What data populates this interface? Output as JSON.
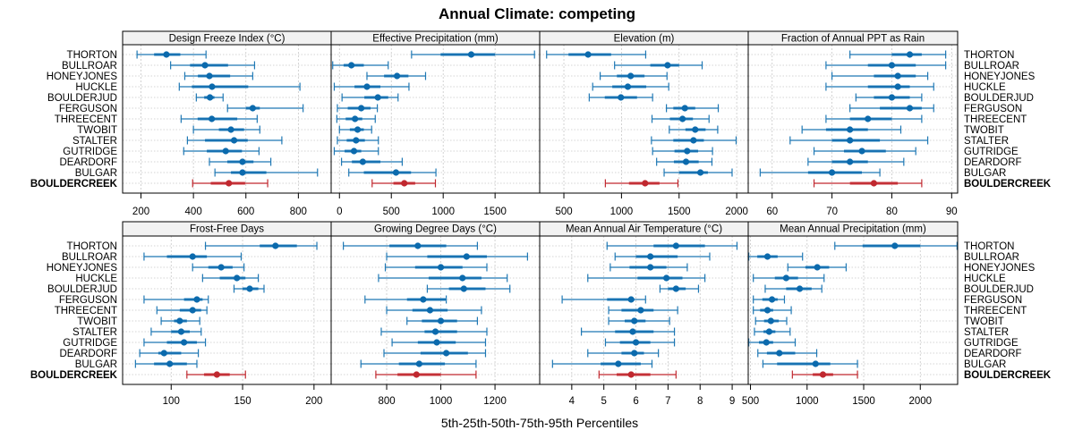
{
  "chart_data": {
    "type": "dotplot-percentile",
    "title": "Annual Climate: competing",
    "xlabel": "5th-25th-50th-75th-95th Percentiles",
    "ylabel": "",
    "categories": [
      "THORTON",
      "BULLROAR",
      "HONEYJONES",
      "HUCKLE",
      "BOULDERJUD",
      "FERGUSON",
      "THREECENT",
      "TWOBIT",
      "STALTER",
      "GUTRIDGE",
      "DEARDORF",
      "BULGAR",
      "BOULDERCREEK"
    ],
    "highlight_category": "BOULDERCREEK",
    "percentile_keys": [
      "p5",
      "p25",
      "p50",
      "p75",
      "p95"
    ],
    "colors": {
      "series": "#1f78b4",
      "series_dark": "#0b6aad",
      "series_light": "#8cbfe0",
      "highlight": "#c0282f",
      "highlight_light": "#e08a8e",
      "strip_bg": "#f2f2f2",
      "grid": "#c8c8c8"
    },
    "grid": true,
    "legend": "none",
    "panels": [
      {
        "name": "Design Freeze Index (°C)",
        "xlim": [
          130,
          925
        ],
        "ticks": [
          200,
          400,
          600,
          800
        ],
        "values": [
          [
            185,
            250,
            297,
            350,
            448
          ],
          [
            313,
            387,
            444,
            532,
            633
          ],
          [
            367,
            417,
            461,
            540,
            626
          ],
          [
            346,
            394,
            471,
            609,
            806
          ],
          [
            411,
            441,
            463,
            480,
            513
          ],
          [
            530,
            600,
            626,
            653,
            818
          ],
          [
            353,
            416,
            470,
            567,
            643
          ],
          [
            400,
            497,
            543,
            593,
            653
          ],
          [
            377,
            444,
            555,
            607,
            737
          ],
          [
            363,
            451,
            523,
            585,
            650
          ],
          [
            461,
            529,
            587,
            629,
            695
          ],
          [
            482,
            543,
            587,
            678,
            873
          ],
          [
            397,
            466,
            535,
            597,
            683
          ]
        ]
      },
      {
        "name": "Effective Precipitation (mm)",
        "xlim": [
          -80,
          1930
        ],
        "ticks": [
          0,
          500,
          1000,
          1500
        ],
        "values": [
          [
            695,
            975,
            1270,
            1500,
            1880
          ],
          [
            -65,
            40,
            115,
            235,
            470
          ],
          [
            265,
            430,
            555,
            665,
            830
          ],
          [
            -50,
            145,
            265,
            395,
            670
          ],
          [
            25,
            240,
            370,
            470,
            565
          ],
          [
            -20,
            80,
            210,
            300,
            365
          ],
          [
            -25,
            60,
            150,
            220,
            345
          ],
          [
            0,
            100,
            175,
            235,
            310
          ],
          [
            -20,
            70,
            160,
            245,
            375
          ],
          [
            -50,
            50,
            140,
            210,
            375
          ],
          [
            20,
            120,
            225,
            395,
            605
          ],
          [
            90,
            235,
            545,
            690,
            930
          ],
          [
            315,
            520,
            625,
            730,
            925
          ]
        ]
      },
      {
        "name": "Elevation (m)",
        "xlim": [
          290,
          2100
        ],
        "ticks": [
          500,
          1000,
          1500,
          2000
        ],
        "values": [
          [
            350,
            540,
            710,
            910,
            1210
          ],
          [
            940,
            1250,
            1400,
            1500,
            1700
          ],
          [
            815,
            960,
            1080,
            1200,
            1395
          ],
          [
            750,
            920,
            1055,
            1215,
            1410
          ],
          [
            720,
            855,
            995,
            1135,
            1270
          ],
          [
            1390,
            1450,
            1550,
            1640,
            1840
          ],
          [
            1265,
            1420,
            1530,
            1620,
            1760
          ],
          [
            1415,
            1555,
            1640,
            1730,
            1835
          ],
          [
            1260,
            1450,
            1625,
            1715,
            1995
          ],
          [
            1270,
            1460,
            1570,
            1665,
            1790
          ],
          [
            1305,
            1455,
            1560,
            1670,
            1785
          ],
          [
            1370,
            1500,
            1685,
            1750,
            1960
          ],
          [
            860,
            1065,
            1205,
            1330,
            1490
          ]
        ]
      },
      {
        "name": "Fraction of Annual PPT as Rain",
        "xlim": [
          56,
          91
        ],
        "ticks": [
          60,
          70,
          80,
          90
        ],
        "values": [
          [
            73,
            80,
            83,
            85,
            89
          ],
          [
            69,
            76,
            80,
            84,
            89
          ],
          [
            70,
            77,
            81,
            84,
            86
          ],
          [
            69,
            76,
            81,
            83,
            87
          ],
          [
            74,
            77,
            80,
            83,
            85
          ],
          [
            73,
            78,
            83,
            85,
            87
          ],
          [
            69,
            73,
            76,
            80,
            85
          ],
          [
            65,
            69,
            73,
            76,
            81.5
          ],
          [
            63,
            70,
            73,
            78,
            86
          ],
          [
            67,
            72,
            75,
            79,
            84
          ],
          [
            66,
            70,
            73,
            76,
            82
          ],
          [
            58,
            66,
            70,
            75,
            78
          ],
          [
            67,
            73,
            77,
            81,
            85
          ]
        ]
      },
      {
        "name": "Frost-Free Days",
        "xlim": [
          66,
          212
        ],
        "ticks": [
          100,
          150,
          200
        ],
        "values": [
          [
            124,
            162,
            173,
            188,
            202
          ],
          [
            81,
            97,
            115,
            125,
            149
          ],
          [
            115,
            126,
            135,
            143,
            151
          ],
          [
            122,
            134,
            146,
            152,
            161
          ],
          [
            144,
            150,
            155,
            161,
            165
          ],
          [
            81,
            109,
            118,
            122,
            126
          ],
          [
            90,
            106,
            115,
            121,
            125
          ],
          [
            93,
            102,
            106,
            111,
            120
          ],
          [
            86,
            100,
            107,
            113,
            121
          ],
          [
            81,
            97,
            109,
            118,
            124
          ],
          [
            78,
            91,
            95,
            107,
            119
          ],
          [
            75,
            88,
            99,
            111,
            118
          ],
          [
            111,
            123,
            132,
            141,
            152
          ]
        ]
      },
      {
        "name": "Growing Degree Days (°C)",
        "xlim": [
          595,
          1365
        ],
        "ticks": [
          800,
          1000,
          1200
        ],
        "values": [
          [
            640,
            810,
            915,
            1020,
            1135
          ],
          [
            800,
            950,
            1095,
            1170,
            1320
          ],
          [
            795,
            905,
            1000,
            1080,
            1170
          ],
          [
            770,
            955,
            1080,
            1150,
            1245
          ],
          [
            950,
            1030,
            1085,
            1165,
            1255
          ],
          [
            720,
            875,
            935,
            1020,
            1020
          ],
          [
            800,
            895,
            960,
            1025,
            1150
          ],
          [
            875,
            930,
            1000,
            1060,
            1135
          ],
          [
            780,
            940,
            980,
            1060,
            1170
          ],
          [
            820,
            915,
            985,
            1055,
            1165
          ],
          [
            790,
            925,
            1020,
            1100,
            1165
          ],
          [
            705,
            845,
            920,
            1015,
            1130
          ],
          [
            760,
            840,
            910,
            1000,
            1130
          ]
        ]
      },
      {
        "name": "Mean Annual Air Temperature (°C)",
        "xlim": [
          3.0,
          9.5
        ],
        "ticks": [
          4,
          5,
          6,
          7,
          8,
          9
        ],
        "values": [
          [
            5.1,
            6.55,
            7.25,
            8.15,
            9.15
          ],
          [
            5.35,
            6.0,
            6.45,
            7.3,
            8.3
          ],
          [
            5.2,
            5.8,
            6.45,
            6.95,
            7.6
          ],
          [
            4.5,
            6.05,
            6.95,
            7.45,
            8.15
          ],
          [
            6.75,
            7.0,
            7.25,
            7.55,
            7.95
          ],
          [
            3.7,
            5.1,
            5.85,
            5.95,
            6.3
          ],
          [
            5.15,
            5.55,
            6.15,
            6.55,
            7.3
          ],
          [
            5.15,
            5.65,
            5.95,
            6.3,
            7.05
          ],
          [
            4.3,
            5.35,
            5.9,
            6.55,
            7.2
          ],
          [
            5.05,
            5.5,
            6.0,
            6.45,
            7.2
          ],
          [
            4.5,
            5.55,
            5.95,
            6.25,
            6.7
          ],
          [
            3.4,
            4.9,
            5.45,
            6.15,
            6.5
          ],
          [
            4.85,
            5.4,
            5.85,
            6.45,
            7.25
          ]
        ]
      },
      {
        "name": "Mean Annual Precipitation (mm)",
        "xlim": [
          480,
          2330
        ],
        "ticks": [
          500,
          1000,
          1500,
          2000
        ],
        "values": [
          [
            1245,
            1490,
            1775,
            2000,
            2325
          ],
          [
            485,
            560,
            650,
            740,
            960
          ],
          [
            830,
            985,
            1090,
            1195,
            1345
          ],
          [
            525,
            715,
            815,
            920,
            1150
          ],
          [
            630,
            815,
            935,
            1040,
            1130
          ],
          [
            525,
            605,
            690,
            740,
            800
          ],
          [
            525,
            585,
            650,
            700,
            860
          ],
          [
            545,
            620,
            680,
            750,
            820
          ],
          [
            535,
            615,
            665,
            720,
            850
          ],
          [
            485,
            575,
            640,
            700,
            895
          ],
          [
            565,
            645,
            755,
            895,
            1085
          ],
          [
            610,
            735,
            1075,
            1205,
            1445
          ],
          [
            870,
            1050,
            1140,
            1230,
            1445
          ]
        ]
      }
    ]
  }
}
